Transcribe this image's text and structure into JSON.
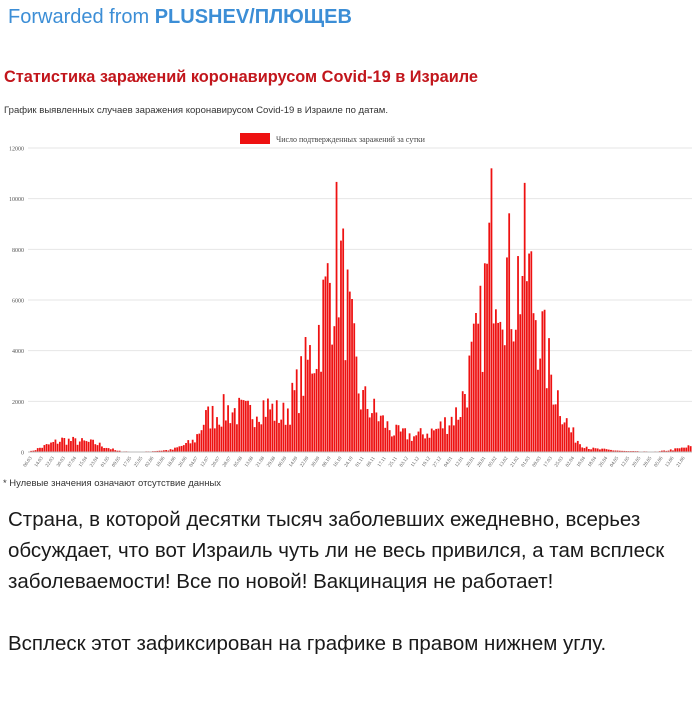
{
  "header": {
    "forwarded_prefix": "Forwarded from ",
    "channel_name": "PLUSHEV/ПЛЮЩЕВ",
    "link_color": "#3c8ed6"
  },
  "chart_data": {
    "type": "bar",
    "title": "Статистика заражений коронавирусом Covid-19 в Израиле",
    "subtitle": "График выявленных случаев заражения коронавирусом Covid-19 в Израиле по датам.",
    "legend": "Число подтвержденных заражений за сутки",
    "legend_position": "top",
    "footnote": "* Нулевые значения означают отсутствие данных",
    "bar_color": "#ee1111",
    "ylim": [
      0,
      12000
    ],
    "yticks": [
      "0",
      "2000",
      "4000",
      "6000",
      "8000",
      "10000",
      "12000"
    ],
    "xtick_labels": [
      "06.03",
      "14.03",
      "22.03",
      "30.03",
      "07.04",
      "15.04",
      "23.04",
      "01.05",
      "09.05",
      "17.05",
      "25.05",
      "02.06",
      "10.06",
      "18.06",
      "26.06",
      "04.07",
      "12.07",
      "20.07",
      "28.07",
      "05.08",
      "13.08",
      "21.08",
      "29.08",
      "06.09",
      "14.09",
      "22.09",
      "30.09",
      "08.10",
      "16.10",
      "24.10",
      "01.11",
      "09.11",
      "17.11",
      "25.11",
      "03.12",
      "11.12",
      "19.12",
      "27.12",
      "04.01",
      "12.01",
      "20.01",
      "28.01",
      "05.02",
      "13.02",
      "21.02",
      "01.03",
      "09.03",
      "17.03",
      "25.03",
      "02.04",
      "10.04",
      "18.04",
      "26.04",
      "04.05",
      "12.05",
      "20.05",
      "28.05",
      "05.06",
      "13.06",
      "21.06"
    ],
    "profile_x": [
      0,
      3,
      6,
      8,
      10,
      13,
      15,
      16,
      18,
      20,
      21,
      23,
      24,
      26,
      28,
      30,
      33,
      35,
      37,
      39,
      41,
      42,
      44,
      45,
      47,
      49,
      50,
      51,
      53,
      54,
      55,
      56,
      57,
      58,
      59,
      60
    ],
    "profile_y": [
      0,
      550,
      400,
      50,
      0,
      100,
      500,
      1500,
      1900,
      1700,
      2200,
      1600,
      2400,
      4800,
      9200,
      2500,
      900,
      700,
      1000,
      1800,
      5500,
      9800,
      7200,
      8600,
      4000,
      1000,
      400,
      150,
      80,
      40,
      30,
      20,
      20,
      80,
      150,
      250
    ]
  },
  "message": {
    "paragraph1": "Страна, в которой десятки тысяч заболевших ежедневно, всерьез обсуждает, что вот Израиль чуть ли не весь привился, а там всплеск заболеваемости! Все по новой! Вакцинация не работает!",
    "paragraph2": "Всплеск этот зафиксирован на графике в правом нижнем углу."
  }
}
